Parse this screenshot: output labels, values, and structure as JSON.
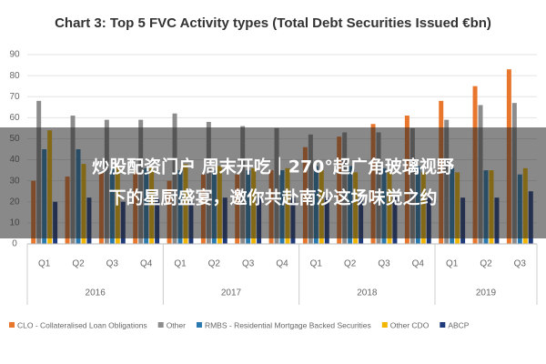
{
  "chart_data": {
    "type": "bar",
    "title": "Chart 3: Top 5 FVC Activity types (Total Debt Securities Issued €bn)",
    "groups": [
      {
        "label": "2016",
        "categories": [
          "Q1",
          "Q2",
          "Q3",
          "Q4"
        ]
      },
      {
        "label": "2017",
        "categories": [
          "Q1",
          "Q2",
          "Q3",
          "Q4"
        ]
      },
      {
        "label": "2018",
        "categories": [
          "Q1",
          "Q2",
          "Q3",
          "Q4"
        ]
      },
      {
        "label": "2019",
        "categories": [
          "Q1",
          "Q2",
          "Q3"
        ]
      }
    ],
    "series": [
      {
        "name": "CLO - Collateralised Loan Obligations",
        "color": "#e8762c",
        "values": [
          30,
          32,
          34,
          35,
          30,
          33,
          33,
          35,
          46,
          51,
          57,
          61,
          68,
          75,
          83
        ]
      },
      {
        "name": "Other",
        "color": "#8c8c8c",
        "values": [
          68,
          61,
          59,
          59,
          62,
          58,
          56,
          55,
          52,
          53,
          53,
          55,
          59,
          66,
          67
        ]
      },
      {
        "name": "RMBS - Residential Mortgage Backed Securities",
        "color": "#2a7ab0",
        "values": [
          45,
          45,
          36,
          36,
          35,
          35,
          35,
          35,
          37,
          37,
          36,
          37,
          36,
          35,
          33
        ]
      },
      {
        "name": "Other CDO",
        "color": "#f2b600",
        "values": [
          54,
          38,
          37,
          37,
          38,
          37,
          36,
          36,
          35,
          34,
          34,
          34,
          34,
          35,
          36
        ]
      },
      {
        "name": "ABCP",
        "color": "#1f3a7a",
        "values": [
          20,
          22,
          20,
          22,
          20,
          22,
          22,
          22,
          22,
          22,
          22,
          22,
          22,
          22,
          25
        ]
      }
    ],
    "ylim": [
      0,
      90
    ],
    "yticks": [
      0,
      10,
      20,
      30,
      40,
      50,
      60,
      70,
      80,
      90
    ],
    "grid": true
  },
  "overlay": {
    "lines": [
      "炒股配资门户 周末开吃｜270°超广角玻璃视野",
      "下的星厨盛宴，邀你共赴南沙这场味觉之约"
    ]
  }
}
